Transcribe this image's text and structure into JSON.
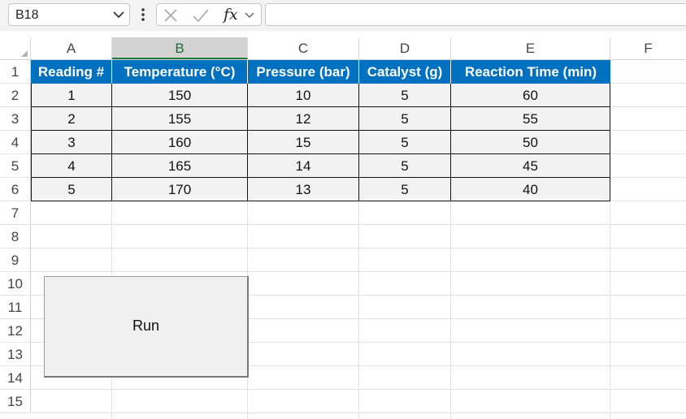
{
  "formula_bar": {
    "name_box": "B18",
    "fx_label": "fx",
    "formula": ""
  },
  "columns": [
    "A",
    "B",
    "C",
    "D",
    "E",
    "F"
  ],
  "selected_column": "B",
  "rows": [
    "1",
    "2",
    "3",
    "4",
    "5",
    "6",
    "7",
    "8",
    "9",
    "10",
    "11",
    "12",
    "13",
    "14",
    "15"
  ],
  "table": {
    "headers": [
      "Reading #",
      "Temperature (°C)",
      "Pressure (bar)",
      "Catalyst (g)",
      "Reaction Time (min)"
    ],
    "rows": [
      [
        "1",
        "150",
        "10",
        "5",
        "60"
      ],
      [
        "2",
        "155",
        "12",
        "5",
        "55"
      ],
      [
        "3",
        "160",
        "15",
        "5",
        "50"
      ],
      [
        "4",
        "165",
        "14",
        "5",
        "45"
      ],
      [
        "5",
        "170",
        "13",
        "5",
        "40"
      ]
    ]
  },
  "run_button": {
    "label": "Run"
  },
  "colors": {
    "header_fill": "#0070c0",
    "header_text": "#ffffff",
    "data_fill": "#f2f2f2",
    "selected_column_text": "#1e6b34"
  }
}
